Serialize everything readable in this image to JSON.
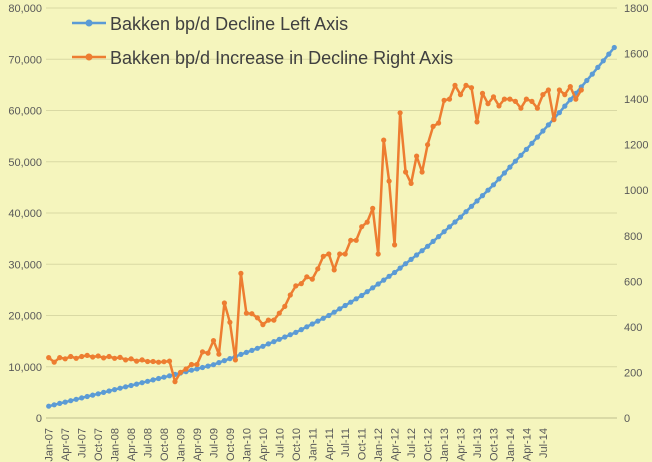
{
  "chart_data": {
    "type": "line",
    "title": "",
    "xlabel": "",
    "ylabel": "",
    "y_left": {
      "range": [
        0,
        80000
      ],
      "ticks": [
        "0",
        "10,000",
        "20,000",
        "30,000",
        "40,000",
        "50,000",
        "60,000",
        "70,000",
        "80,000"
      ]
    },
    "y_right": {
      "range": [
        0,
        1800
      ],
      "ticks": [
        "0",
        "200",
        "400",
        "600",
        "800",
        "1000",
        "1200",
        "1400",
        "1600",
        "1800"
      ]
    },
    "x_tick_labels": [
      "Jan-07",
      "Apr-07",
      "Jul-07",
      "Oct-07",
      "Jan-08",
      "Apr-08",
      "Jul-08",
      "Oct-08",
      "Jan-09",
      "Apr-09",
      "Jul-09",
      "Oct-09",
      "Jan-10",
      "Apr-10",
      "Jul-10",
      "Oct-10",
      "Jan-11",
      "Apr-11",
      "Jul-11",
      "Oct-11",
      "Jan-12",
      "Apr-12",
      "Jul-12",
      "Oct-12",
      "Jan-13",
      "Apr-13",
      "Jul-13",
      "Oct-13",
      "Jan-14",
      "Apr-14",
      "Jul-14"
    ],
    "grid": true,
    "legend_position": "top-left",
    "series": [
      {
        "name": "Bakken bp/d Decline Left Axis",
        "axis": "left",
        "color": "#5b9bd5",
        "values": [
          2300,
          2570,
          2840,
          3110,
          3380,
          3650,
          3920,
          4190,
          4460,
          4730,
          5000,
          5270,
          5540,
          5810,
          6080,
          6350,
          6620,
          6890,
          7160,
          7430,
          7700,
          7970,
          8240,
          8510,
          8780,
          9050,
          9320,
          9590,
          9860,
          10130,
          10400,
          10800,
          11200,
          11600,
          12000,
          12400,
          12800,
          13200,
          13600,
          14000,
          14450,
          14900,
          15350,
          15800,
          16250,
          16700,
          17250,
          17800,
          18350,
          18900,
          19450,
          20000,
          20650,
          21300,
          21950,
          22600,
          23250,
          23900,
          24650,
          25400,
          26150,
          26900,
          27650,
          28400,
          29250,
          30100,
          30950,
          31800,
          32650,
          33500,
          34450,
          35400,
          36350,
          37300,
          38250,
          39200,
          40250,
          41300,
          42350,
          43400,
          44450,
          45500,
          46650,
          47800,
          48950,
          50100,
          51250,
          52400,
          53600,
          54800,
          56000,
          57200,
          58400,
          59600,
          60850,
          62100,
          63350,
          64600,
          65850,
          67100,
          68400,
          69700,
          71000,
          72300
        ]
      },
      {
        "name": "Bakken bp/d Increase in Decline Right Axis",
        "axis": "right",
        "color": "#ed7d31",
        "values": [
          265,
          245,
          265,
          260,
          270,
          262,
          270,
          275,
          268,
          272,
          264,
          270,
          262,
          266,
          255,
          260,
          250,
          255,
          248,
          248,
          245,
          247,
          250,
          160,
          200,
          215,
          235,
          235,
          290,
          285,
          340,
          280,
          505,
          420,
          255,
          635,
          460,
          458,
          440,
          410,
          430,
          430,
          460,
          490,
          540,
          580,
          590,
          620,
          610,
          655,
          710,
          720,
          650,
          720,
          720,
          780,
          780,
          840,
          860,
          920,
          720,
          1220,
          1040,
          760,
          1340,
          1080,
          1030,
          1150,
          1080,
          1200,
          1280,
          1295,
          1395,
          1400,
          1460,
          1420,
          1460,
          1450,
          1300,
          1425,
          1380,
          1410,
          1370,
          1400,
          1400,
          1390,
          1360,
          1400,
          1390,
          1360,
          1420,
          1440,
          1310,
          1440,
          1420,
          1455,
          1400,
          1440
        ]
      }
    ]
  }
}
